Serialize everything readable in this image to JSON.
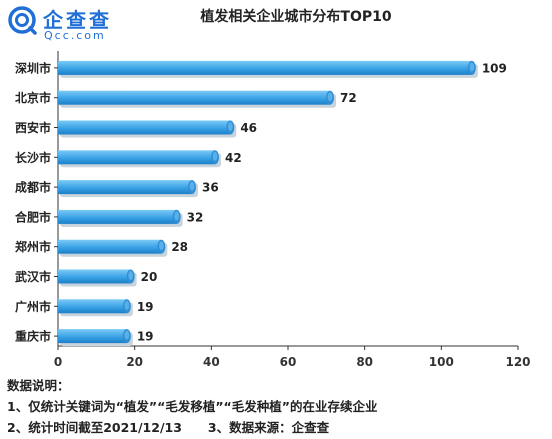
{
  "logo": {
    "name": "企查查",
    "domain": "Qcc.com"
  },
  "chart_data": {
    "type": "bar",
    "orientation": "horizontal",
    "title": "植发相关企业城市分布TOP10",
    "categories": [
      "深圳市",
      "北京市",
      "西安市",
      "长沙市",
      "成都市",
      "合肥市",
      "郑州市",
      "武汉市",
      "广州市",
      "重庆市"
    ],
    "values": [
      109,
      72,
      46,
      42,
      36,
      32,
      28,
      20,
      19,
      19
    ],
    "xlim": [
      0,
      120
    ],
    "x_ticks": [
      0,
      20,
      40,
      60,
      80,
      100,
      120
    ],
    "xlabel": "",
    "ylabel": "",
    "grid": false,
    "bar_color": "#3aa2e6"
  },
  "notes": {
    "heading": "数据说明：",
    "line1": "1、仅统计关键词为“植发”“毛发移植”“毛发种植”的在业存续企业",
    "line2a": "2、统计时间截至2021/12/13",
    "line2b": "3、数据来源：企查查"
  }
}
